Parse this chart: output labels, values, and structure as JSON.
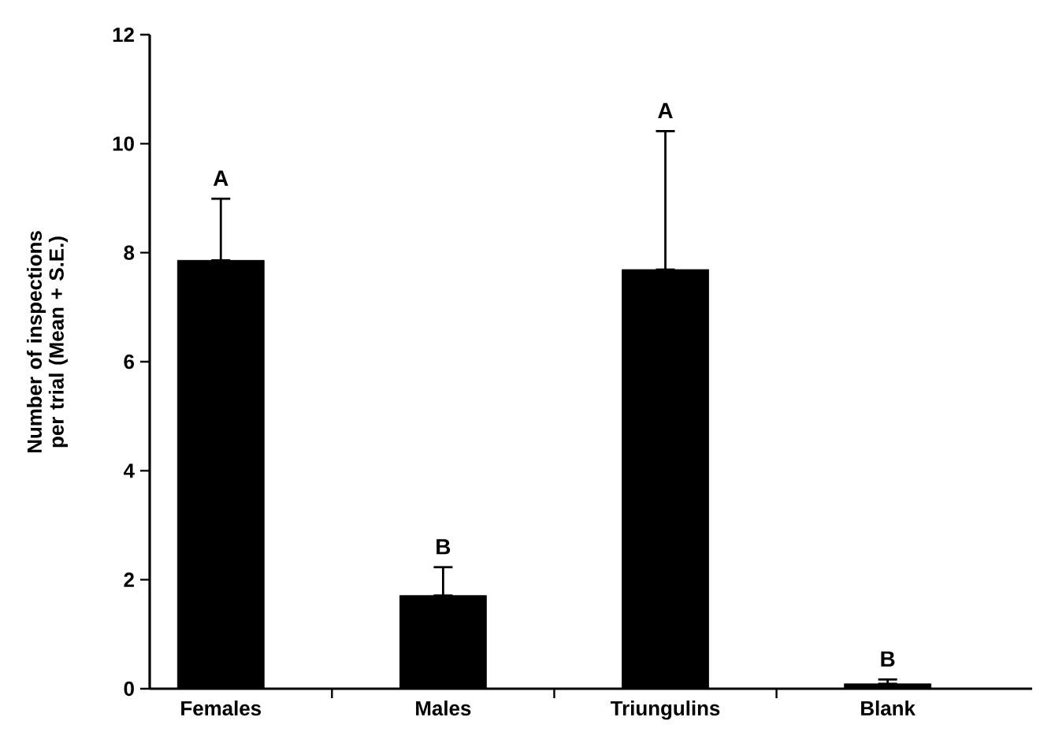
{
  "chart_data": {
    "type": "bar",
    "ylabel": "Number of inspections per trial (Mean + S.E.)",
    "categories": [
      "Females",
      "Males",
      "Triungulins",
      "Blank"
    ],
    "values": [
      7.86,
      1.71,
      7.69,
      0.09
    ],
    "errors": [
      [
        7.86,
        8.99
      ],
      [
        1.71,
        2.23
      ],
      [
        7.69,
        10.23
      ],
      [
        0.09,
        0.17
      ]
    ],
    "color": "#000000",
    "ylim": [
      0,
      12
    ],
    "yticks": [
      0,
      2,
      4,
      6,
      8,
      10,
      12
    ],
    "annotations": [
      {
        "text": "A",
        "x": "Females",
        "y": 8.99
      },
      {
        "text": "B",
        "x": "Males",
        "y": 2.23
      },
      {
        "text": "A",
        "x": "Triungulins",
        "y": 10.23
      },
      {
        "text": "B",
        "x": "Blank",
        "y": 0.17
      }
    ]
  }
}
